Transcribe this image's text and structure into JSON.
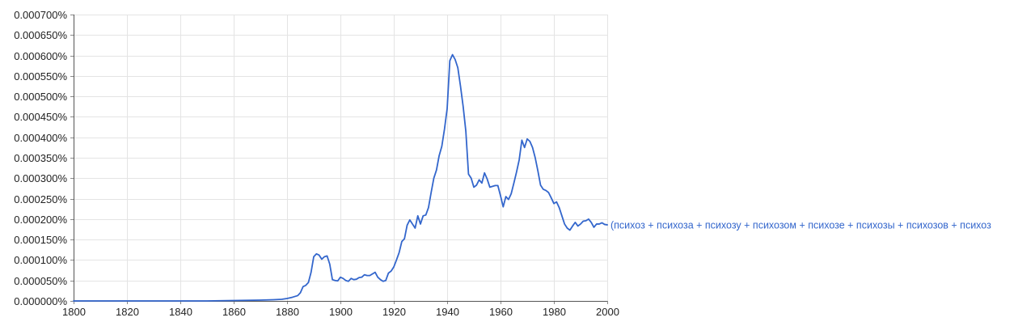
{
  "chart_data": {
    "type": "line",
    "title": "",
    "xlabel": "",
    "ylabel": "",
    "xlim": [
      1800,
      2000
    ],
    "ylim": [
      0,
      0.0007
    ],
    "x_ticks": [
      1800,
      1820,
      1840,
      1860,
      1880,
      1900,
      1920,
      1940,
      1960,
      1980,
      2000
    ],
    "x_tick_labels": [
      "1800",
      "1820",
      "1840",
      "1860",
      "1880",
      "1900",
      "1920",
      "1940",
      "1960",
      "1980",
      "2000"
    ],
    "y_ticks": [
      0,
      5e-05,
      0.0001,
      0.00015,
      0.0002,
      0.00025,
      0.0003,
      0.00035,
      0.0004,
      0.00045,
      0.0005,
      0.00055,
      0.0006,
      0.00065,
      0.0007
    ],
    "y_tick_labels": [
      "0.000000%",
      "0.000050%",
      "0.000100%",
      "0.000150%",
      "0.000200%",
      "0.000250%",
      "0.000300%",
      "0.000350%",
      "0.000400%",
      "0.000450%",
      "0.000500%",
      "0.000550%",
      "0.000600%",
      "0.000650%",
      "0.000700%"
    ],
    "grid": true,
    "series": [
      {
        "name": "(психоз + психоза + психозу + психозом + психозе + психозы + психозов + психоз",
        "color": "#3366cc",
        "x": [
          1800,
          1850,
          1860,
          1870,
          1875,
          1878,
          1880,
          1882,
          1884,
          1885,
          1886,
          1887,
          1888,
          1889,
          1890,
          1891,
          1892,
          1893,
          1894,
          1895,
          1896,
          1897,
          1898,
          1899,
          1900,
          1901,
          1902,
          1903,
          1904,
          1905,
          1906,
          1907,
          1908,
          1909,
          1910,
          1911,
          1912,
          1913,
          1914,
          1915,
          1916,
          1917,
          1918,
          1919,
          1920,
          1921,
          1922,
          1923,
          1924,
          1925,
          1926,
          1927,
          1928,
          1929,
          1930,
          1931,
          1932,
          1933,
          1934,
          1935,
          1936,
          1937,
          1938,
          1939,
          1940,
          1941,
          1942,
          1943,
          1944,
          1945,
          1946,
          1947,
          1948,
          1949,
          1950,
          1951,
          1952,
          1953,
          1954,
          1955,
          1956,
          1957,
          1958,
          1959,
          1960,
          1961,
          1962,
          1963,
          1964,
          1965,
          1966,
          1967,
          1968,
          1969,
          1970,
          1971,
          1972,
          1973,
          1974,
          1975,
          1976,
          1977,
          1978,
          1979,
          1980,
          1981,
          1982,
          1983,
          1984,
          1985,
          1986,
          1987,
          1988,
          1989,
          1990,
          1991,
          1992,
          1993,
          1994,
          1995,
          1996,
          1997,
          1998,
          1999,
          2000
        ],
        "values": [
          0.0,
          0.0,
          1e-06,
          2e-06,
          3e-06,
          4e-06,
          6e-06,
          9e-06,
          1.3e-05,
          2e-05,
          3.5e-05,
          3.8e-05,
          4.5e-05,
          7e-05,
          0.000108,
          0.000115,
          0.000112,
          0.000102,
          0.000108,
          0.00011,
          9e-05,
          5.2e-05,
          5e-05,
          4.9e-05,
          5.8e-05,
          5.5e-05,
          5e-05,
          4.8e-05,
          5.5e-05,
          5.2e-05,
          5.3e-05,
          5.7e-05,
          5.8e-05,
          6.4e-05,
          6.2e-05,
          6.2e-05,
          6.6e-05,
          7e-05,
          5.8e-05,
          5.2e-05,
          4.8e-05,
          5e-05,
          6.8e-05,
          7.3e-05,
          8.3e-05,
          0.0001,
          0.000118,
          0.000145,
          0.000152,
          0.000185,
          0.000198,
          0.000188,
          0.000178,
          0.000208,
          0.000188,
          0.000208,
          0.00021,
          0.000228,
          0.000265,
          0.0003,
          0.00032,
          0.000355,
          0.000378,
          0.00042,
          0.00047,
          0.000587,
          0.000602,
          0.00059,
          0.00057,
          0.000525,
          0.000475,
          0.000415,
          0.00031,
          0.0003,
          0.000278,
          0.000283,
          0.000296,
          0.000288,
          0.000313,
          0.000298,
          0.000278,
          0.00028,
          0.000282,
          0.000282,
          0.000257,
          0.00023,
          0.000255,
          0.000248,
          0.000262,
          0.000288,
          0.000315,
          0.000345,
          0.000393,
          0.000375,
          0.000396,
          0.00039,
          0.000375,
          0.00035,
          0.000318,
          0.000283,
          0.000273,
          0.00027,
          0.000265,
          0.000252,
          0.000238,
          0.000242,
          0.000228,
          0.000208,
          0.000188,
          0.000178,
          0.000173,
          0.000183,
          0.000192,
          0.000183,
          0.000188,
          0.000195,
          0.000196,
          0.0002,
          0.000192,
          0.00018,
          0.000188,
          0.000188,
          0.000191,
          0.000187,
          0.000186
        ]
      }
    ]
  }
}
